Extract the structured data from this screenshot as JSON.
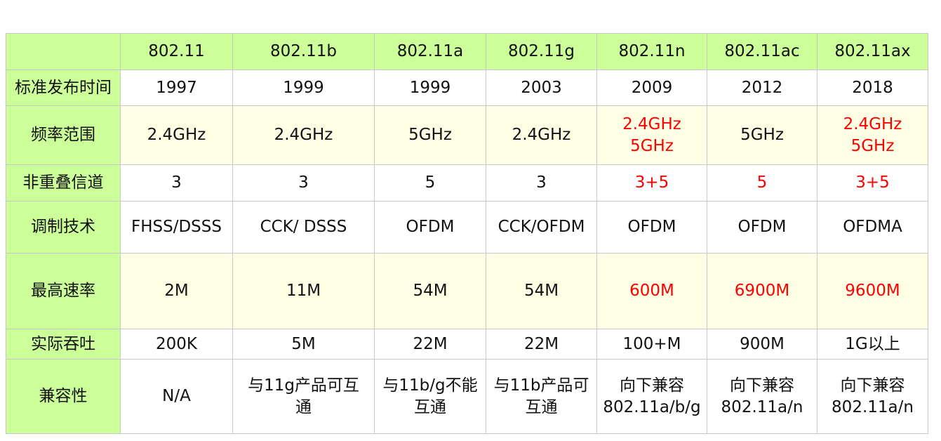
{
  "table": {
    "header": [
      "",
      "802.11",
      "802.11b",
      "802.11a",
      "802.11g",
      "802.11n",
      "802.11ac",
      "802.11ax"
    ],
    "rows": [
      {
        "label": "标准发布时间",
        "cells": [
          "1997",
          "1999",
          "1999",
          "2003",
          "2009",
          "2012",
          "2018"
        ],
        "highlight": [
          false,
          false,
          false,
          false,
          false,
          false,
          false
        ]
      },
      {
        "label": "频率范围",
        "cells": [
          "2.4GHz",
          "2.4GHz",
          "5GHz",
          "2.4GHz",
          "2.4GHz\n5GHz",
          "5GHz",
          "2.4GHz\n5GHz"
        ],
        "highlight": [
          false,
          false,
          false,
          false,
          true,
          false,
          true
        ]
      },
      {
        "label": "非重叠信道",
        "cells": [
          "3",
          "3",
          "5",
          "3",
          "3+5",
          "5",
          "3+5"
        ],
        "highlight": [
          false,
          false,
          false,
          false,
          true,
          true,
          true
        ]
      },
      {
        "label": "调制技术",
        "cells": [
          "FHSS/DSSS",
          "CCK/ DSSS",
          "OFDM",
          "CCK/OFDM",
          "OFDM",
          "OFDM",
          "OFDMA"
        ],
        "highlight": [
          false,
          false,
          false,
          false,
          false,
          false,
          false
        ]
      },
      {
        "label": "最高速率",
        "cells": [
          "2M",
          "11M",
          "54M",
          "54M",
          "600M",
          "6900M",
          "9600M"
        ],
        "highlight": [
          false,
          false,
          false,
          false,
          true,
          true,
          true
        ]
      },
      {
        "label": "实际吞吐",
        "cells": [
          "200K",
          "5M",
          "22M",
          "22M",
          "100+M",
          "900M",
          "1G以上"
        ],
        "highlight": [
          false,
          false,
          false,
          false,
          false,
          false,
          false
        ]
      },
      {
        "label": "兼容性",
        "cells": [
          "N/A",
          "与11g产品可互\n通",
          "与11b/g不能\n互通",
          "与11b产品可\n互通",
          "向下兼容\n802.11a/b/g",
          "向下兼容\n802.11a/n",
          "向下兼容\n802.11a/n"
        ],
        "highlight": [
          false,
          false,
          false,
          false,
          false,
          false,
          false
        ]
      }
    ]
  },
  "colors": {
    "header_bg": "#ccff99",
    "label_bg": "#ccff99",
    "row_alt_bg": "#ffffe6",
    "highlight_text": "#ff0000"
  }
}
